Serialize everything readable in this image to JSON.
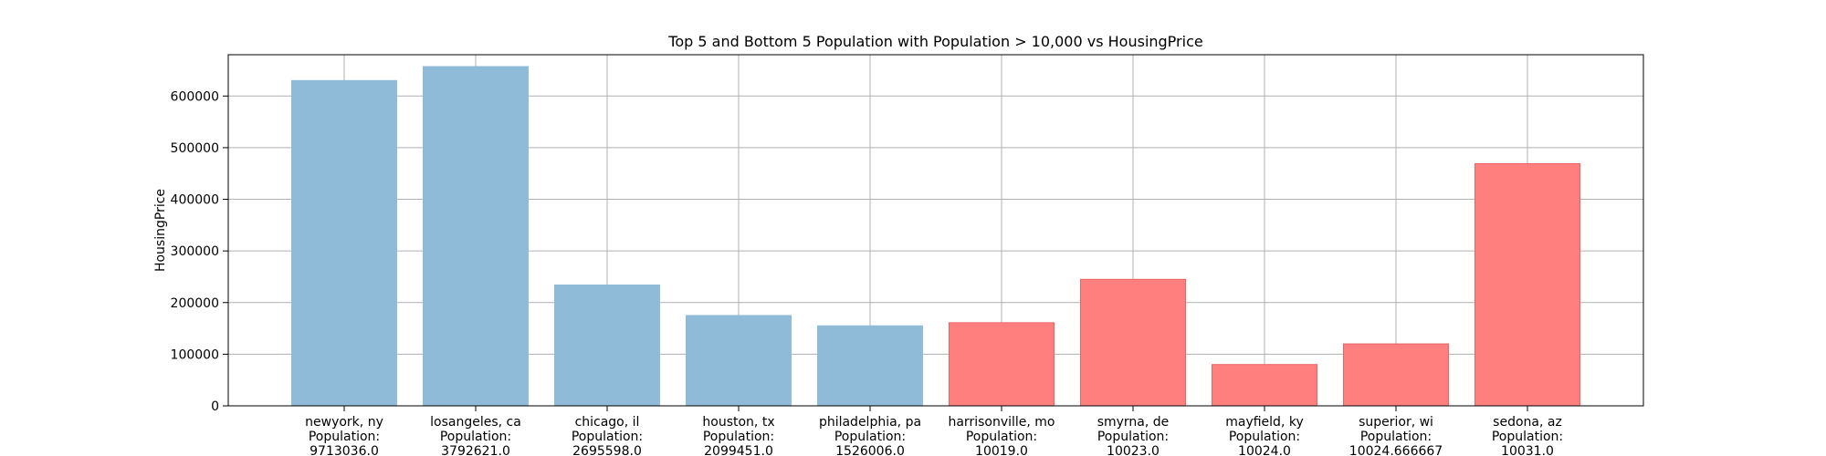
{
  "chart_data": {
    "type": "bar",
    "title": "Top 5 and Bottom 5 Population with Population > 10,000 vs HousingPrice",
    "xlabel": "",
    "ylabel": "HousingPrice",
    "ylim": [
      0,
      680000
    ],
    "yticks": [
      0,
      100000,
      200000,
      300000,
      400000,
      500000,
      600000
    ],
    "grid": true,
    "categories": [
      [
        "newyork, ny",
        "Population:",
        "9713036.0"
      ],
      [
        "losangeles, ca",
        "Population:",
        "3792621.0"
      ],
      [
        "chicago, il",
        "Population:",
        "2695598.0"
      ],
      [
        "houston, tx",
        "Population:",
        "2099451.0"
      ],
      [
        "philadelphia, pa",
        "Population:",
        "1526006.0"
      ],
      [
        "harrisonville, mo",
        "Population:",
        "10019.0"
      ],
      [
        "smyrna, de",
        "Population:",
        "10023.0"
      ],
      [
        "mayfield, ky",
        "Population:",
        "10024.0"
      ],
      [
        "superior, wi",
        "Population:",
        "10024.666667"
      ],
      [
        "sedona, az",
        "Population:",
        "10031.0"
      ]
    ],
    "values": [
      630000,
      657000,
      234000,
      175000,
      155000,
      161000,
      245000,
      80000,
      120000,
      469000
    ],
    "colors": [
      "#8fbad8",
      "#8fbad8",
      "#8fbad8",
      "#8fbad8",
      "#8fbad8",
      "#ff7f7f",
      "#ff7f7f",
      "#ff7f7f",
      "#ff7f7f",
      "#ff7f7f"
    ],
    "edge_colors": [
      "#8fbad8",
      "#8fbad8",
      "#8fbad8",
      "#8fbad8",
      "#8fbad8",
      "#e86565",
      "#e86565",
      "#e86565",
      "#e86565",
      "#e86565"
    ]
  }
}
